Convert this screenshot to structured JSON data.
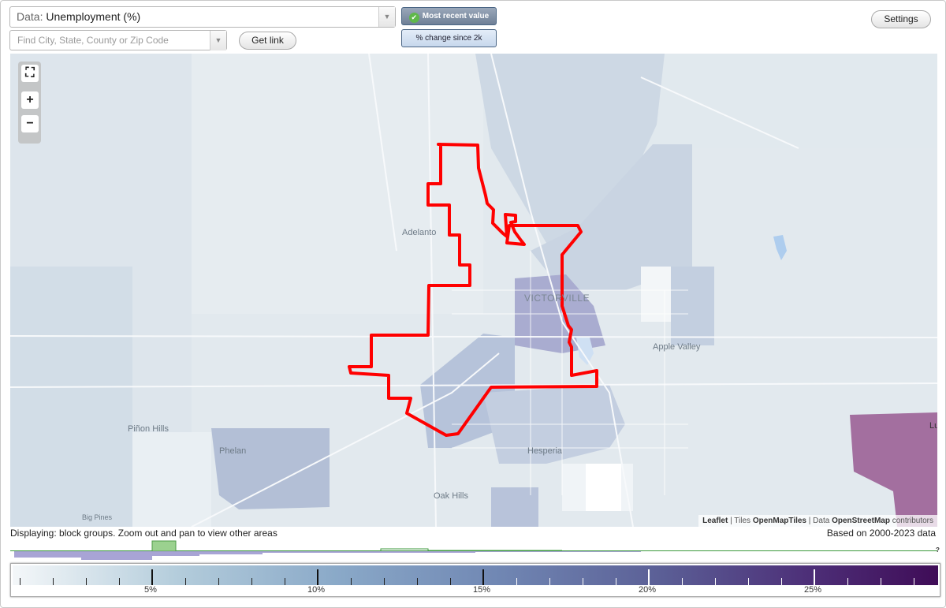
{
  "controls": {
    "data_prefix": "Data:",
    "data_value": "Unemployment (%)",
    "search_placeholder": "Find City, State, County or Zip Code",
    "get_link_label": "Get link",
    "most_recent_label": "Most recent value",
    "pct_change_label": "% change since 2k",
    "settings_label": "Settings"
  },
  "map": {
    "place_labels": {
      "adelanto": "Adelanto",
      "victorville": "VICTORVILLE",
      "apple_valley": "Apple Valley",
      "pinon_hills": "Piñon Hills",
      "phelan": "Phelan",
      "hesperia": "Hesperia",
      "oak_hills": "Oak Hills",
      "big_pines": "Big Pines",
      "lucerne_cut": "Lu"
    },
    "zoom_controls": {
      "fit": "⛶",
      "zoom_in": "+",
      "zoom_out": "−"
    },
    "attribution": {
      "leaflet": "Leaflet",
      "tiles_prefix": "| Tiles",
      "tiles": "OpenMapTiles",
      "data_prefix": "| Data",
      "osm": "OpenStreetMap",
      "contributors": "contributors"
    },
    "highlight_color": "#ff0000"
  },
  "status_text": "Displaying: block groups. Zoom out and pan to view other areas",
  "basis_text": "Based on 2000-2023 data",
  "legend": {
    "labels": [
      "5%",
      "10%",
      "15%",
      "20%",
      "25%"
    ],
    "unknown_marker": "?",
    "low_color": "#f4f7f9",
    "high_color": "#3f0c57"
  }
}
